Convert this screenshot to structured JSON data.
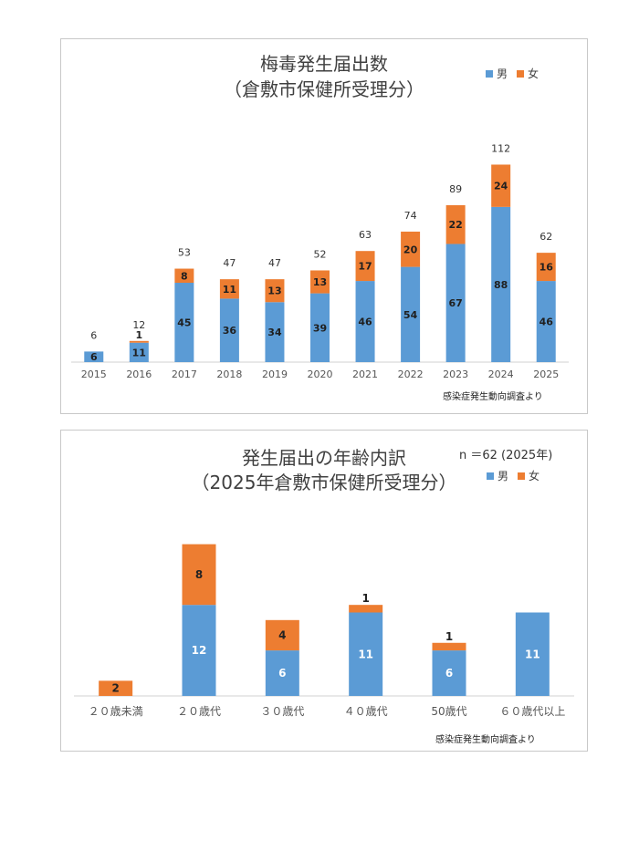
{
  "chart_data": [
    {
      "type": "bar",
      "stacked": true,
      "title_line1": "梅毒発生届出数",
      "title_line2": "（倉敷市保健所受理分）",
      "categories": [
        "2015",
        "2016",
        "2017",
        "2018",
        "2019",
        "2020",
        "2021",
        "2022",
        "2023",
        "2024",
        "2025"
      ],
      "series": [
        {
          "name": "男",
          "color": "#5b9bd5",
          "values": [
            6,
            11,
            45,
            36,
            34,
            39,
            46,
            54,
            67,
            88,
            46
          ]
        },
        {
          "name": "女",
          "color": "#ed7d31",
          "values": [
            0,
            1,
            8,
            11,
            13,
            13,
            17,
            20,
            22,
            24,
            16
          ]
        }
      ],
      "totals": [
        6,
        12,
        53,
        47,
        47,
        52,
        63,
        74,
        89,
        112,
        62
      ],
      "ylim": [
        0,
        120
      ],
      "legend": "top-right",
      "source": "感染症発生動向調査より"
    },
    {
      "type": "bar",
      "stacked": true,
      "title_line1": "発生届出の年齢内訳",
      "title_line2": "（2025年倉敷市保健所受理分）",
      "note": "n ＝62 (2025年)",
      "categories": [
        "２０歳未満",
        "２０歳代",
        "３０歳代",
        "４０歳代",
        "50歳代",
        "６０歳代以上"
      ],
      "series": [
        {
          "name": "男",
          "color": "#5b9bd5",
          "values": [
            0,
            12,
            6,
            11,
            6,
            11
          ]
        },
        {
          "name": "女",
          "color": "#ed7d31",
          "values": [
            2,
            8,
            4,
            1,
            1,
            0
          ]
        }
      ],
      "ylim": [
        0,
        22
      ],
      "legend": "top-right",
      "source": "感染症発生動向調査より"
    }
  ]
}
